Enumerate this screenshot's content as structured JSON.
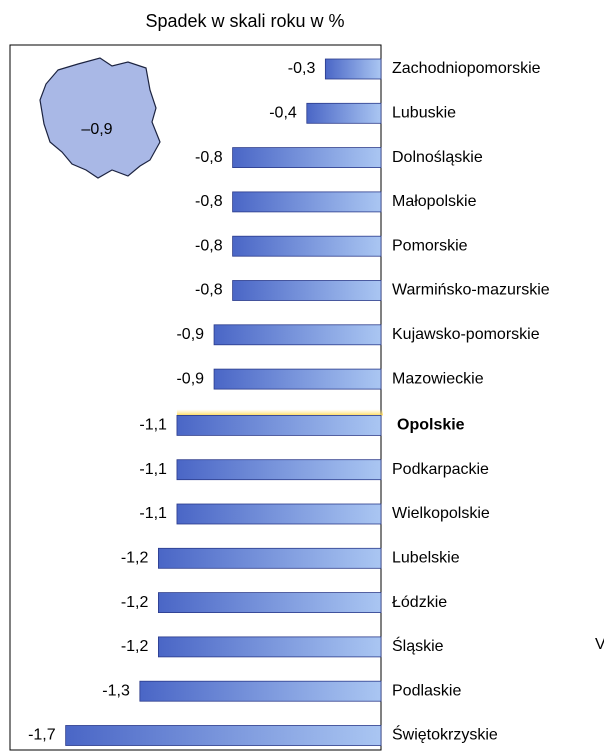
{
  "chart_data": {
    "type": "bar",
    "orientation": "horizontal",
    "title": "Spadek w skali roku w %",
    "categories": [
      "Zachodniopomorskie",
      "Lubuskie",
      "Dolnośląskie",
      "Małopolskie",
      "Pomorskie",
      "Warmińsko-mazurskie",
      "Kujawsko-pomorskie",
      "Mazowieckie",
      "Opolskie",
      "Podkarpackie",
      "Wielkopolskie",
      "Lubelskie",
      "Łódzkie",
      "Śląskie",
      "Podlaskie",
      "Świętokrzyskie"
    ],
    "values": [
      -0.3,
      -0.4,
      -0.8,
      -0.8,
      -0.8,
      -0.8,
      -0.9,
      -0.9,
      -1.1,
      -1.1,
      -1.1,
      -1.2,
      -1.2,
      -1.2,
      -1.3,
      -1.7
    ],
    "value_labels": [
      "-0,3",
      "-0,4",
      "-0,8",
      "-0,8",
      "-0,8",
      "-0,8",
      "-0,9",
      "-0,9",
      "-1,1",
      "-1,1",
      "-1,1",
      "-1,2",
      "-1,2",
      "-1,2",
      "-1,3",
      "-1,7"
    ],
    "xlim": [
      -2,
      0
    ],
    "color_start": "#4a66c6",
    "color_end": "#aac6f2",
    "highlight_index": 8,
    "inset_label": "–0,9",
    "annotations": [
      "V"
    ]
  }
}
